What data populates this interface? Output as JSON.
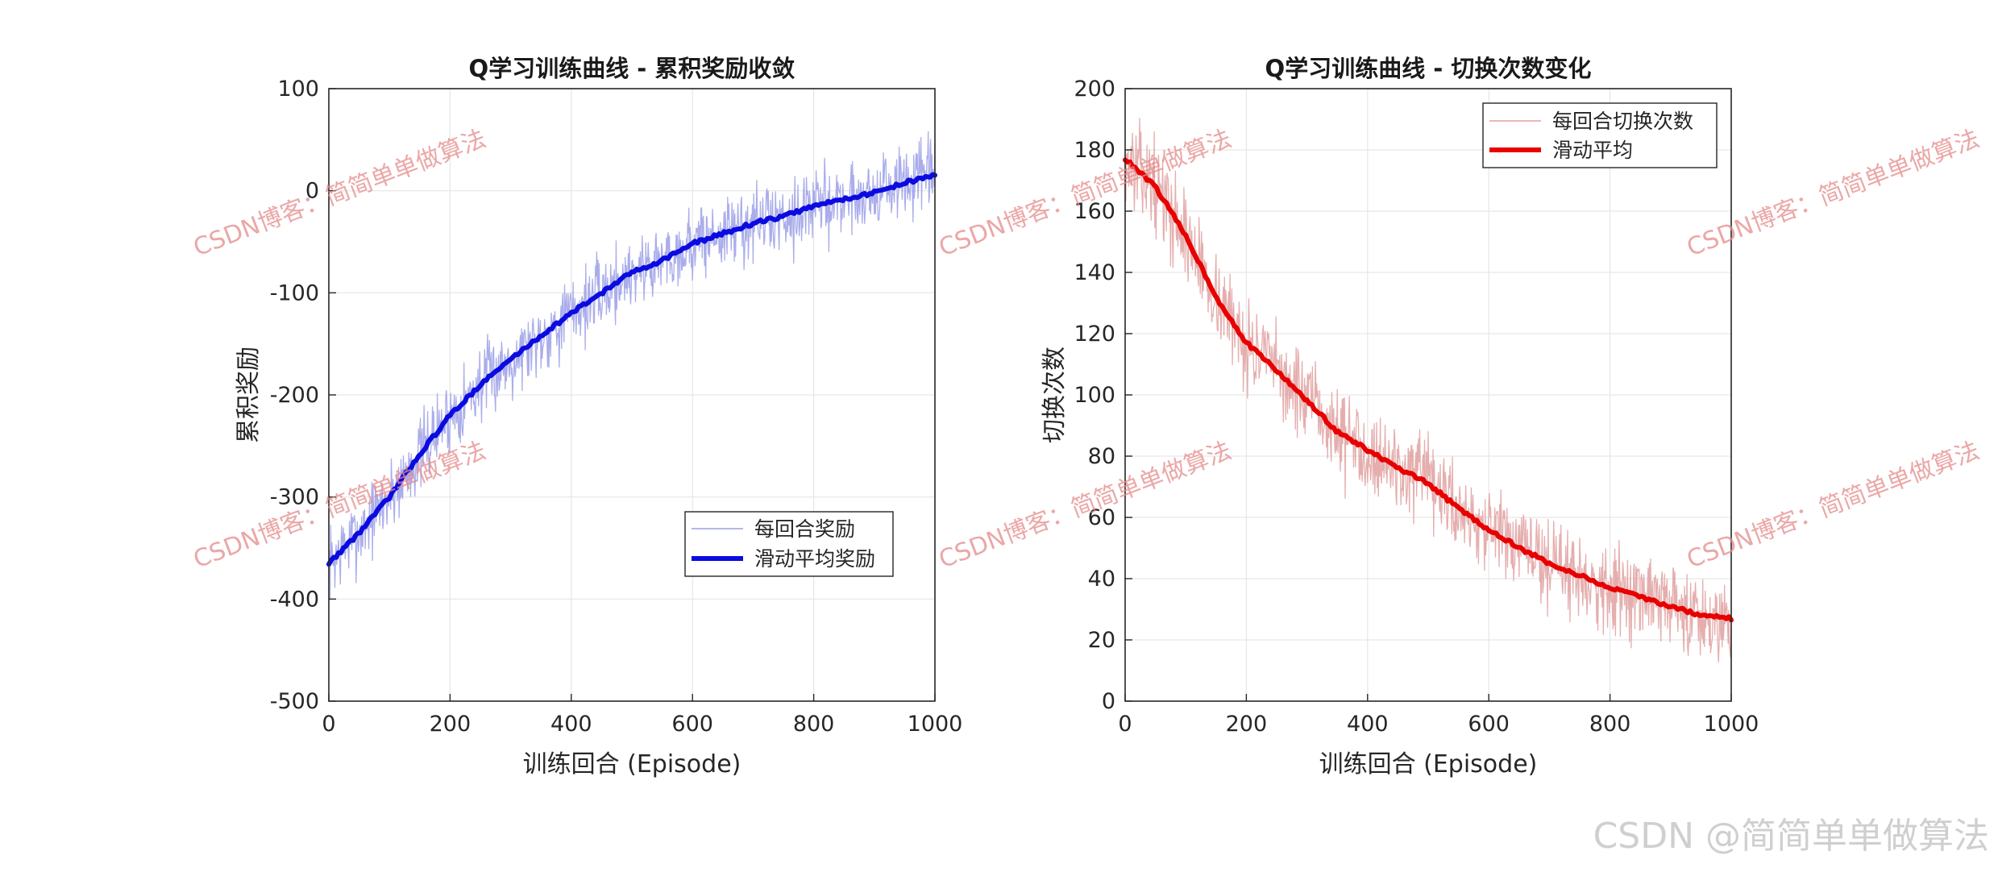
{
  "chart_data": [
    {
      "type": "line",
      "title": "Q学习训练曲线 - 累积奖励收敛",
      "xlabel": "训练回合 (Episode)",
      "ylabel": "累积奖励",
      "xlim": [
        0,
        1000
      ],
      "ylim": [
        -500,
        100
      ],
      "xticks": [
        0,
        200,
        400,
        600,
        800,
        1000
      ],
      "yticks": [
        -500,
        -400,
        -300,
        -200,
        -100,
        0,
        100
      ],
      "grid": true,
      "legend_position": "lower-right",
      "series": [
        {
          "name": "每回合奖励",
          "color": "#9b9fe6",
          "style": "raw",
          "noise": 18,
          "x": [
            0,
            50,
            100,
            150,
            200,
            250,
            300,
            350,
            400,
            450,
            500,
            550,
            600,
            650,
            700,
            750,
            800,
            850,
            900,
            950,
            1000
          ],
          "values": [
            -365,
            -335,
            -300,
            -258,
            -220,
            -190,
            -165,
            -142,
            -120,
            -100,
            -80,
            -68,
            -52,
            -42,
            -32,
            -25,
            -15,
            -8,
            -2,
            8,
            15
          ]
        },
        {
          "name": "滑动平均奖励",
          "color": "#0b0be0",
          "style": "smooth",
          "x": [
            0,
            50,
            100,
            150,
            200,
            250,
            300,
            350,
            400,
            450,
            500,
            550,
            600,
            650,
            700,
            750,
            800,
            850,
            900,
            950,
            1000
          ],
          "values": [
            -365,
            -335,
            -300,
            -258,
            -220,
            -190,
            -165,
            -142,
            -120,
            -100,
            -80,
            -68,
            -52,
            -42,
            -32,
            -25,
            -15,
            -8,
            -2,
            8,
            15
          ]
        }
      ]
    },
    {
      "type": "line",
      "title": "Q学习训练曲线 - 切换次数变化",
      "xlabel": "训练回合 (Episode)",
      "ylabel": "切换次数",
      "xlim": [
        0,
        1000
      ],
      "ylim": [
        0,
        200
      ],
      "xticks": [
        0,
        200,
        400,
        600,
        800,
        1000
      ],
      "yticks": [
        0,
        20,
        40,
        60,
        80,
        100,
        120,
        140,
        160,
        180,
        200
      ],
      "grid": true,
      "legend_position": "top-right",
      "series": [
        {
          "name": "每回合切换次数",
          "color": "#e0a0a0",
          "style": "raw",
          "noise": 7,
          "x": [
            0,
            50,
            100,
            150,
            200,
            250,
            300,
            350,
            400,
            450,
            500,
            550,
            600,
            650,
            700,
            750,
            800,
            850,
            900,
            950,
            1000
          ],
          "values": [
            177,
            168,
            152,
            132,
            117,
            108,
            98,
            88,
            82,
            76,
            71,
            63,
            56,
            50,
            45,
            41,
            37,
            34,
            31,
            28,
            27
          ]
        },
        {
          "name": "滑动平均",
          "color": "#e80000",
          "style": "smooth",
          "x": [
            0,
            50,
            100,
            150,
            200,
            250,
            300,
            350,
            400,
            450,
            500,
            550,
            600,
            650,
            700,
            750,
            800,
            850,
            900,
            950,
            1000
          ],
          "values": [
            177,
            168,
            152,
            132,
            117,
            108,
            98,
            88,
            82,
            76,
            71,
            63,
            56,
            50,
            45,
            41,
            37,
            34,
            31,
            28,
            27
          ]
        }
      ]
    }
  ],
  "watermark": {
    "text": "CSDN博客：简简单单做算法",
    "color": "#e58a8a"
  },
  "credit": "CSDN @简简单单做算法"
}
